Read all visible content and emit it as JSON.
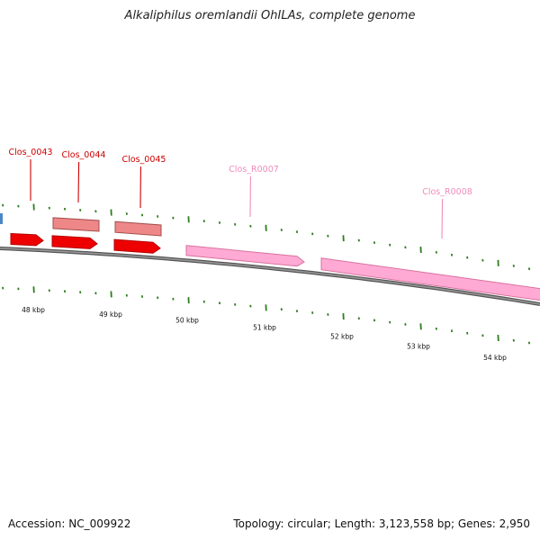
{
  "title": "Alkaliphilus oremlandii OhILAs, complete genome",
  "footer": {
    "accession": "Accession: NC_009922",
    "summary": "Topology: circular; Length: 3,123,558 bp; Genes: 2,950"
  },
  "colors": {
    "cds": "#ee0000",
    "cds_dark": "#b30000",
    "cds_light": "#ee8888",
    "rna": "#ffaad4",
    "rna_dark": "#d9729f",
    "backbone": "#777777",
    "tick": "#2e7d1e",
    "label_red": "#cc0000",
    "label_pink": "#f08cbb"
  },
  "genes": [
    {
      "name": "Clos_0043",
      "type": "CDS"
    },
    {
      "name": "Clos_0044",
      "type": "CDS"
    },
    {
      "name": "Clos_0045",
      "type": "CDS"
    },
    {
      "name": "Clos_R0007",
      "type": "RNA"
    },
    {
      "name": "Clos_R0008",
      "type": "RNA"
    }
  ],
  "scale": {
    "labels": [
      "48 kbp",
      "49 kbp",
      "50 kbp",
      "51 kbp",
      "52 kbp",
      "53 kbp",
      "54 kbp"
    ]
  }
}
